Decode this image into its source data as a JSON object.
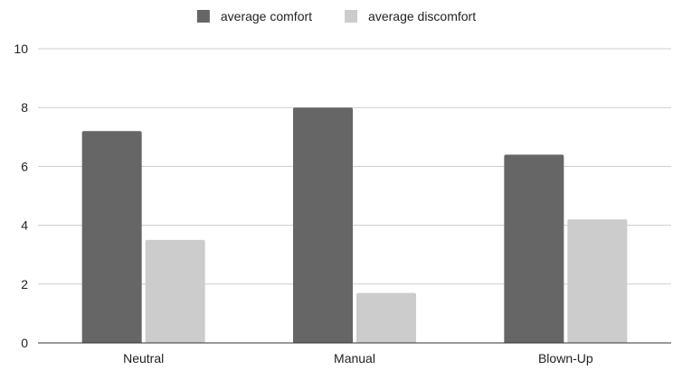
{
  "chart_data": {
    "type": "bar",
    "title": "",
    "xlabel": "",
    "ylabel": "",
    "categories": [
      "Neutral",
      "Manual",
      "Blown-Up"
    ],
    "series": [
      {
        "name": "average comfort",
        "color": "#666666",
        "values": [
          7.2,
          8.0,
          6.4
        ]
      },
      {
        "name": "average discomfort",
        "color": "#cccccc",
        "values": [
          3.5,
          1.7,
          4.2
        ]
      }
    ],
    "ylim": [
      0,
      10
    ],
    "yticks": [
      0,
      2,
      4,
      6,
      8,
      10
    ],
    "grid": true,
    "legend_position": "top-center"
  }
}
